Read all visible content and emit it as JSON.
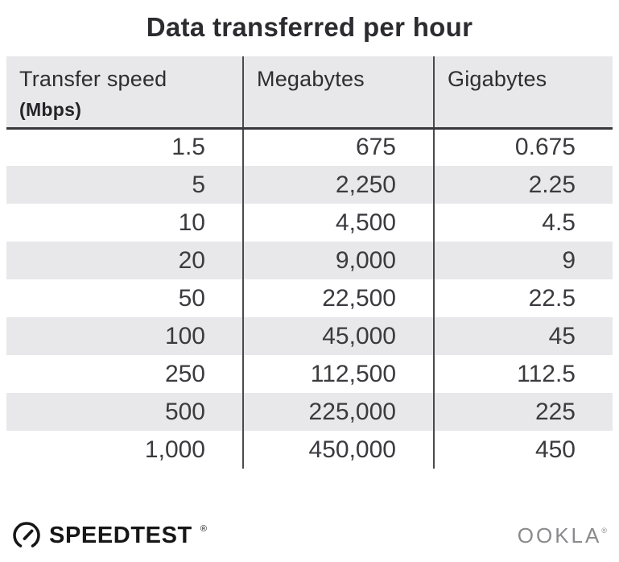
{
  "title": "Data transferred per hour",
  "table": {
    "columns": [
      {
        "label": "Transfer speed",
        "sublabel": "(Mbps)"
      },
      {
        "label": "Megabytes"
      },
      {
        "label": "Gigabytes"
      }
    ],
    "rows": [
      [
        "1.5",
        "675",
        "0.675"
      ],
      [
        "5",
        "2,250",
        "2.25"
      ],
      [
        "10",
        "4,500",
        "4.5"
      ],
      [
        "20",
        "9,000",
        "9"
      ],
      [
        "50",
        "22,500",
        "22.5"
      ],
      [
        "100",
        "45,000",
        "45"
      ],
      [
        "250",
        "112,500",
        "112.5"
      ],
      [
        "500",
        "225,000",
        "225"
      ],
      [
        "1,000",
        "450,000",
        "450"
      ]
    ]
  },
  "footer": {
    "brand": "SPEEDTEST",
    "brand_mark": "®",
    "company": "OOKLA",
    "company_mark": "®"
  },
  "colors": {
    "header_bg": "#e8e7ea",
    "row_alt_bg": "#e8e7ea",
    "divider": "#4a494e",
    "header_rule": "#39383c",
    "body_text": "#3b3a3e",
    "title_text": "#2c2b2f",
    "ookla_gray": "#8a8a8d",
    "brand_black": "#161616"
  },
  "chart_data": {
    "type": "table",
    "title": "Data transferred per hour",
    "columns": [
      "Transfer speed (Mbps)",
      "Megabytes",
      "Gigabytes"
    ],
    "rows": [
      [
        1.5,
        675,
        0.675
      ],
      [
        5,
        2250,
        2.25
      ],
      [
        10,
        4500,
        4.5
      ],
      [
        20,
        9000,
        9
      ],
      [
        50,
        22500,
        22.5
      ],
      [
        100,
        45000,
        45
      ],
      [
        250,
        112500,
        112.5
      ],
      [
        500,
        225000,
        225
      ],
      [
        1000,
        450000,
        450
      ]
    ],
    "layout_hints": {
      "striped_rows": true,
      "stripe_start": "second_row",
      "column_dividers": true,
      "numbers_right_aligned": true
    }
  }
}
